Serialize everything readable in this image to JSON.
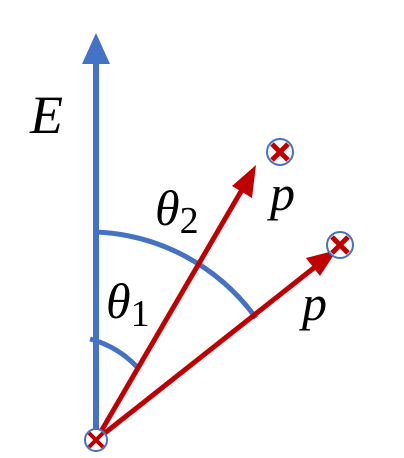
{
  "labels": {
    "field": "E",
    "theta2": {
      "symbol": "θ",
      "subscript": "2"
    },
    "theta1": {
      "symbol": "θ",
      "subscript": "1"
    },
    "p_upper": "p",
    "p_lower": "p"
  }
}
